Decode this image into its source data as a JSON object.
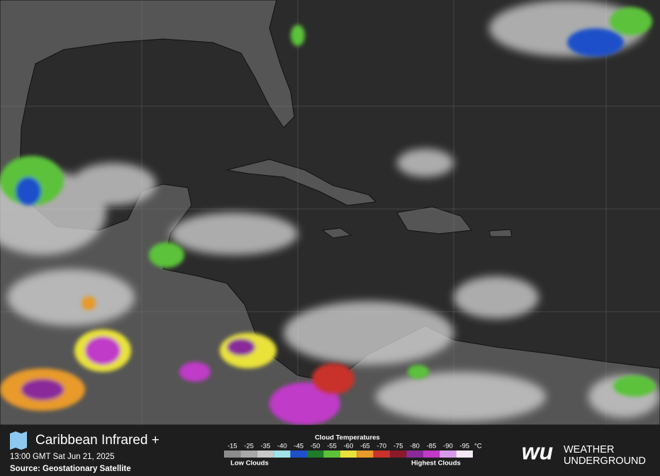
{
  "header": {
    "title": "Caribbean Infrared +",
    "timestamp": "13:00 GMT Sat Jun 21, 2025",
    "source": "Source: Geostationary Satellite"
  },
  "legend": {
    "title": "Cloud Temperatures",
    "unit": "°C",
    "low": "Low Clouds",
    "high": "Highest Clouds",
    "items": [
      {
        "label": "-15",
        "color": "#8c8c8c"
      },
      {
        "label": "-25",
        "color": "#a8a8a8"
      },
      {
        "label": "-35",
        "color": "#c8c8c8"
      },
      {
        "label": "-40",
        "color": "#9fe3e8"
      },
      {
        "label": "-45",
        "color": "#1f4fc9"
      },
      {
        "label": "-50",
        "color": "#1f7a2a"
      },
      {
        "label": "-55",
        "color": "#5cc23a"
      },
      {
        "label": "-60",
        "color": "#e8e23a"
      },
      {
        "label": "-65",
        "color": "#e89a2a"
      },
      {
        "label": "-70",
        "color": "#c8322a"
      },
      {
        "label": "-75",
        "color": "#8a1a2a"
      },
      {
        "label": "-80",
        "color": "#8a2a9a"
      },
      {
        "label": "-85",
        "color": "#c03ac8"
      },
      {
        "label": "-90",
        "color": "#d89ae8"
      },
      {
        "label": "-95",
        "color": "#f4e8f4"
      }
    ]
  },
  "brand": {
    "mark": "wu",
    "line1": "WEATHER",
    "line2": "UNDERGROUND"
  }
}
